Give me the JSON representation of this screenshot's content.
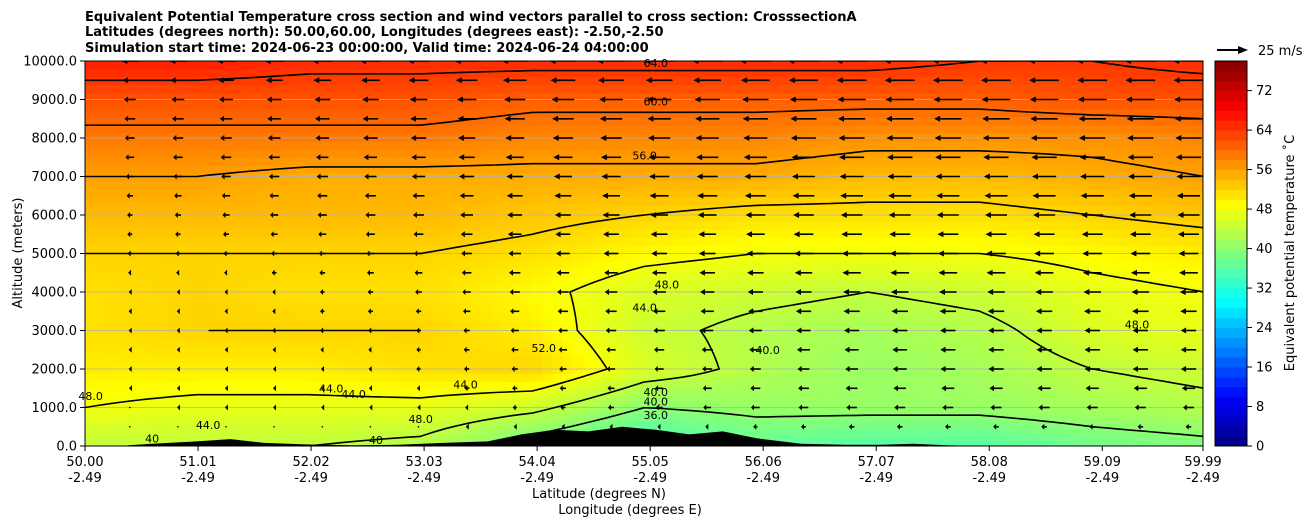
{
  "chart_data": {
    "type": "heatmap",
    "title_lines": [
      "Equivalent Potential Temperature cross section and wind vectors parallel to cross section: CrosssectionA",
      "Latitudes (degrees north): 50.00,60.00, Longitudes (degrees east): -2.50,-2.50",
      "Simulation start time: 2024-06-23 00:00:00, Valid time: 2024-06-24 04:00:00"
    ],
    "xlabel_lat": "Latitude (degrees N)",
    "xlabel_lon": "Longitude (degrees E)",
    "ylabel": "Altitude (meters)",
    "colorbar_label": "Equivalent potential temperature ˚C",
    "quiver_key_label": "25 m/s",
    "x_ticks_lat": [
      "50.00",
      "51.01",
      "52.02",
      "53.03",
      "54.04",
      "55.05",
      "56.06",
      "57.07",
      "58.08",
      "59.09",
      "59.99"
    ],
    "x_ticks_lon": [
      "-2.49",
      "-2.49",
      "-2.49",
      "-2.49",
      "-2.49",
      "-2.49",
      "-2.49",
      "-2.49",
      "-2.49",
      "-2.49",
      "-2.49"
    ],
    "xlim": [
      50.0,
      59.99
    ],
    "ylim": [
      0,
      10000
    ],
    "y_ticks": [
      "0.0",
      "1000.0",
      "2000.0",
      "3000.0",
      "4000.0",
      "5000.0",
      "6000.0",
      "7000.0",
      "8000.0",
      "9000.0",
      "10000.0"
    ],
    "colorbar_ticks": [
      "0",
      "8",
      "16",
      "24",
      "32",
      "40",
      "48",
      "56",
      "64",
      "72"
    ],
    "colorbar_range": [
      0,
      78
    ],
    "contour_levels": [
      32,
      36,
      40,
      44,
      48,
      52,
      56,
      60,
      64,
      68
    ],
    "contour_labels": [
      {
        "text": "64.0",
        "lat": 55.1,
        "alt": 9950
      },
      {
        "text": "60.0",
        "lat": 55.1,
        "alt": 8950
      },
      {
        "text": "56.0",
        "lat": 55.0,
        "alt": 7550
      },
      {
        "text": "48.0",
        "lat": 55.2,
        "alt": 4200
      },
      {
        "text": "44.0",
        "lat": 55.0,
        "alt": 3600
      },
      {
        "text": "52.0",
        "lat": 54.1,
        "alt": 2550
      },
      {
        "text": "40.0",
        "lat": 56.1,
        "alt": 2500
      },
      {
        "text": "48.0",
        "lat": 59.4,
        "alt": 3150
      },
      {
        "text": "40.0",
        "lat": 55.1,
        "alt": 1400
      },
      {
        "text": "40.0",
        "lat": 55.1,
        "alt": 1150
      },
      {
        "text": "36.0",
        "lat": 55.1,
        "alt": 800
      },
      {
        "text": "48.0",
        "lat": 53.0,
        "alt": 700
      },
      {
        "text": "48.0",
        "lat": 50.05,
        "alt": 1300
      },
      {
        "text": "44.0",
        "lat": 52.2,
        "alt": 1500
      },
      {
        "text": "44.0",
        "lat": 52.4,
        "alt": 1350
      },
      {
        "text": "44.0",
        "lat": 53.4,
        "alt": 1600
      },
      {
        "text": "44.0",
        "lat": 51.1,
        "alt": 550
      },
      {
        "text": "40",
        "lat": 50.6,
        "alt": 200
      },
      {
        "text": "40",
        "lat": 52.6,
        "alt": 150
      }
    ],
    "theta_e_field": {
      "lat": [
        50.0,
        51.0,
        52.0,
        53.0,
        54.0,
        55.0,
        56.0,
        57.0,
        58.0,
        59.0,
        60.0
      ],
      "alt": [
        0,
        1000,
        2000,
        3000,
        4000,
        5000,
        6000,
        7000,
        8000,
        9000,
        10000
      ],
      "values": [
        [
          44,
          44,
          44,
          43,
          38,
          34,
          37,
          36,
          36,
          38,
          39
        ],
        [
          48,
          47,
          47,
          47,
          45,
          40,
          41,
          41,
          41,
          42,
          43
        ],
        [
          50,
          50,
          50,
          51,
          52,
          46,
          43,
          41,
          42,
          44,
          45
        ],
        [
          51,
          52,
          52,
          52,
          50,
          45,
          43,
          42,
          43,
          46,
          47
        ],
        [
          51,
          52,
          51,
          51,
          49,
          46,
          45,
          44,
          45,
          47,
          48
        ],
        [
          52,
          52,
          52,
          52,
          51,
          49,
          48,
          48,
          48,
          49,
          50
        ],
        [
          54,
          54,
          54,
          54,
          53,
          52,
          51,
          51,
          51,
          52,
          53
        ],
        [
          56,
          56,
          55,
          55,
          55,
          55,
          55,
          54,
          54,
          55,
          56
        ],
        [
          59,
          59,
          59,
          59,
          58,
          58,
          58,
          57,
          57,
          57,
          58
        ],
        [
          62,
          62,
          62,
          62,
          61,
          61,
          61,
          61,
          61,
          62,
          62
        ],
        [
          66,
          66,
          65,
          65,
          65,
          65,
          65,
          65,
          64,
          64,
          65
        ]
      ]
    },
    "wind_u": {
      "lat": [
        50.0,
        51.0,
        52.0,
        53.0,
        54.0,
        55.0,
        56.0,
        57.0,
        58.0,
        59.0,
        60.0
      ],
      "alt": [
        0,
        1000,
        2000,
        3000,
        4000,
        5000,
        6000,
        7000,
        8000,
        9000,
        10000
      ],
      "values": [
        [
          0,
          0,
          0,
          0,
          0,
          0,
          0,
          0,
          0,
          0,
          0
        ],
        [
          0,
          -1,
          -1,
          -1,
          -2,
          -3,
          -4,
          -5,
          -5,
          -5,
          -5
        ],
        [
          -1,
          -1,
          -1,
          -2,
          -3,
          -4,
          -5,
          -6,
          -7,
          -7,
          -7
        ],
        [
          -1,
          -1,
          -2,
          -2,
          -4,
          -5,
          -6,
          -7,
          -7,
          -7,
          -7
        ],
        [
          -1,
          -1,
          -2,
          -3,
          -5,
          -6,
          -7,
          -8,
          -8,
          -8,
          -8
        ],
        [
          -2,
          -2,
          -3,
          -4,
          -6,
          -7,
          -8,
          -9,
          -9,
          -9,
          -9
        ],
        [
          -2,
          -3,
          -4,
          -5,
          -7,
          -8,
          -9,
          -10,
          -10,
          -10,
          -10
        ],
        [
          -3,
          -4,
          -5,
          -6,
          -8,
          -9,
          -10,
          -11,
          -11,
          -11,
          -11
        ],
        [
          -4,
          -5,
          -6,
          -7,
          -9,
          -10,
          -11,
          -12,
          -12,
          -12,
          -12
        ],
        [
          -5,
          -6,
          -7,
          -8,
          -10,
          -11,
          -12,
          -13,
          -13,
          -13,
          -13
        ],
        [
          -7,
          -8,
          -9,
          -10,
          -12,
          -13,
          -14,
          -14,
          -14,
          -14,
          -14
        ]
      ]
    },
    "terrain": {
      "lat": [
        50.0,
        50.3,
        50.6,
        51.0,
        51.3,
        51.6,
        52.0,
        52.4,
        52.8,
        53.2,
        53.6,
        53.9,
        54.2,
        54.5,
        54.8,
        55.1,
        55.4,
        55.7,
        56.0,
        56.4,
        56.8,
        57.1,
        57.4,
        57.7,
        58.0,
        58.5,
        59.0,
        59.5,
        59.99
      ],
      "alt": [
        0,
        0,
        60,
        120,
        180,
        80,
        40,
        20,
        30,
        80,
        120,
        300,
        420,
        380,
        500,
        420,
        300,
        380,
        200,
        60,
        30,
        30,
        60,
        20,
        0,
        0,
        0,
        0,
        0
      ]
    },
    "colors": {
      "colormap": [
        "#00007f",
        "#0000ff",
        "#007fff",
        "#00ffff",
        "#7fff7f",
        "#ffff00",
        "#ff7f00",
        "#ff0000",
        "#7f0000"
      ],
      "contour": "#000000",
      "terrain": "#000000",
      "grid": "#b0b0b0"
    }
  }
}
